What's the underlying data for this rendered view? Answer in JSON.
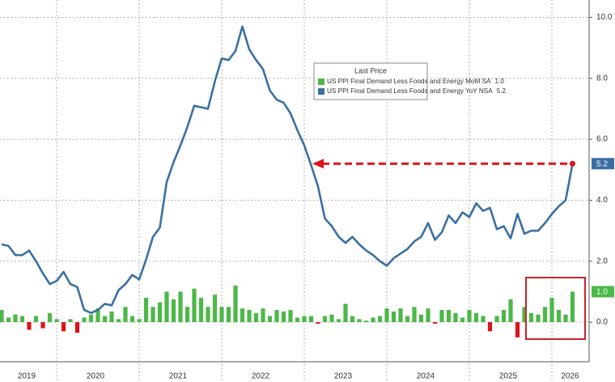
{
  "chart_data": {
    "type": "combo",
    "categories": [
      null,
      null,
      null,
      null,
      "2019",
      null,
      null,
      null,
      null,
      null,
      null,
      null,
      null,
      null,
      "2020",
      null,
      null,
      null,
      null,
      null,
      null,
      null,
      null,
      null,
      null,
      null,
      "2021",
      null,
      null,
      null,
      null,
      null,
      null,
      null,
      null,
      null,
      null,
      null,
      "2022",
      null,
      null,
      null,
      null,
      null,
      null,
      null,
      null,
      null,
      null,
      null,
      "2023",
      null,
      null,
      null,
      null,
      null,
      null,
      null,
      null,
      null,
      null,
      null,
      "2024",
      null,
      null,
      null,
      null,
      null,
      null,
      null,
      null,
      null,
      null,
      null,
      "2025",
      null,
      null,
      null,
      null,
      null,
      null,
      null,
      null,
      "2026"
    ],
    "legend_title": "Last Price",
    "series": [
      {
        "name": "US PPI Final Demand Less Foods and Energy MoM SA",
        "type": "bar",
        "color": "#4cb848",
        "negative_color": "#d9151b",
        "last_value_label": "1.0",
        "values": [
          0.4,
          0.15,
          0.25,
          0.2,
          -0.25,
          0.2,
          -0.2,
          0.3,
          0.1,
          -0.3,
          0.1,
          -0.35,
          0.15,
          0.25,
          0.45,
          0.2,
          0.35,
          0.1,
          0.5,
          0.2,
          0.1,
          0.8,
          0.5,
          0.65,
          1.0,
          0.75,
          1.0,
          0.5,
          1.1,
          0.8,
          0.5,
          0.9,
          0.5,
          0.5,
          1.2,
          0.45,
          0.4,
          0.3,
          0.45,
          0.2,
          0.4,
          0.35,
          0.4,
          0.15,
          0.2,
          0.2,
          -0.05,
          0.2,
          0.25,
          0.1,
          0.6,
          0.2,
          0.1,
          0.05,
          0.15,
          0.2,
          0.45,
          0.35,
          0.45,
          0.2,
          0.5,
          0.25,
          0.45,
          -0.05,
          0.4,
          0.4,
          0.3,
          0.15,
          0.4,
          0.3,
          0.2,
          -0.3,
          0.2,
          0.4,
          0.75,
          -0.5,
          0.5,
          0.3,
          0.25,
          0.5,
          0.8,
          0.4,
          0.25,
          1.0
        ]
      },
      {
        "name": "US PPI Final Demand Less Foods and Energy YoY NSA",
        "type": "line",
        "color": "#3b6fa3",
        "last_value_label": "5.2",
        "values": [
          2.55,
          2.5,
          2.2,
          2.2,
          2.35,
          2.0,
          1.6,
          1.25,
          1.35,
          1.65,
          1.25,
          1.15,
          0.4,
          0.3,
          0.4,
          0.6,
          0.55,
          1.05,
          1.25,
          1.55,
          1.4,
          2.05,
          2.8,
          3.1,
          4.6,
          5.25,
          5.8,
          6.4,
          7.1,
          7.05,
          7.0,
          7.9,
          8.65,
          8.6,
          8.9,
          9.7,
          8.95,
          8.6,
          8.3,
          7.6,
          7.3,
          7.2,
          6.85,
          6.3,
          5.8,
          5.15,
          4.45,
          3.4,
          3.15,
          2.8,
          2.6,
          2.8,
          2.55,
          2.35,
          2.2,
          2.0,
          1.85,
          2.1,
          2.25,
          2.4,
          2.65,
          2.8,
          3.25,
          2.7,
          2.95,
          3.5,
          3.25,
          3.6,
          3.45,
          3.9,
          3.65,
          3.75,
          3.05,
          3.15,
          2.75,
          3.55,
          2.9,
          3.0,
          3.0,
          3.25,
          3.55,
          3.8,
          4.0,
          5.2
        ]
      }
    ],
    "ylim": [
      -1.3,
      10.57
    ],
    "yticks": [
      {
        "value": 0,
        "label": "0.0"
      },
      {
        "value": 2,
        "label": "2.0"
      },
      {
        "value": 4,
        "label": "4.0"
      },
      {
        "value": 6,
        "label": "6.0"
      },
      {
        "value": 8,
        "label": "8.0"
      },
      {
        "value": 10,
        "label": "10.0"
      }
    ],
    "grid": true
  }
}
